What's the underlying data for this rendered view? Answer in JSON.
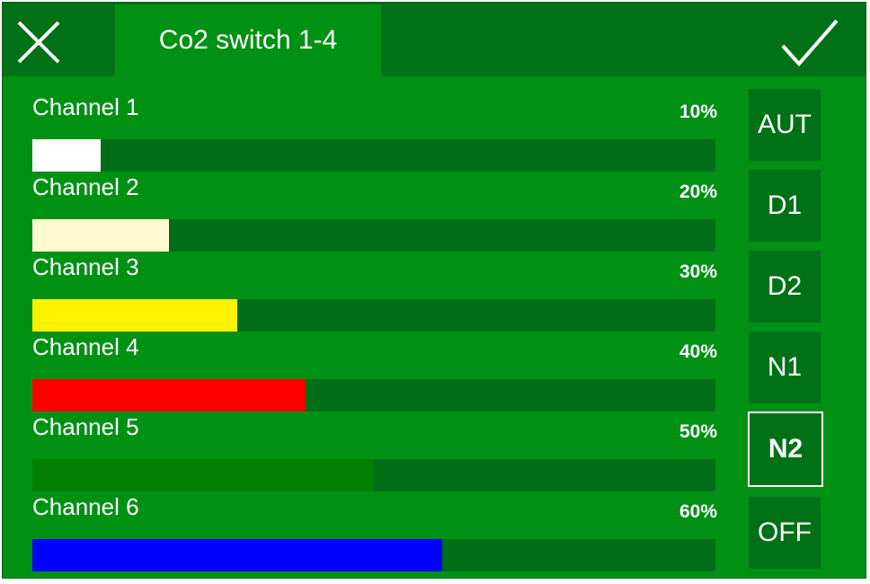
{
  "header": {
    "tab_title": "Co2 switch 1-4",
    "close_icon": "close-icon",
    "confirm_icon": "checkmark-icon"
  },
  "channels": [
    {
      "label": "Channel 1",
      "percent_text": "10%",
      "level": 0.1,
      "color": "#ffffff"
    },
    {
      "label": "Channel 2",
      "percent_text": "20%",
      "level": 0.2,
      "color": "#fff9cf"
    },
    {
      "label": "Channel 3",
      "percent_text": "30%",
      "level": 0.3,
      "color": "#fff200"
    },
    {
      "label": "Channel 4",
      "percent_text": "40%",
      "level": 0.4,
      "color": "#ff0000"
    },
    {
      "label": "Channel 5",
      "percent_text": "50%",
      "level": 0.5,
      "color": "#007f00"
    },
    {
      "label": "Channel 6",
      "percent_text": "60%",
      "level": 0.6,
      "color": "#0000ff"
    }
  ],
  "modes": [
    {
      "label": "AUT",
      "active": false
    },
    {
      "label": "D1",
      "active": false
    },
    {
      "label": "D2",
      "active": false
    },
    {
      "label": "N1",
      "active": false
    },
    {
      "label": "N2",
      "active": true
    },
    {
      "label": "OFF",
      "active": false
    }
  ],
  "colors": {
    "background": "#009114",
    "header": "#007116",
    "track": "#006e17"
  }
}
